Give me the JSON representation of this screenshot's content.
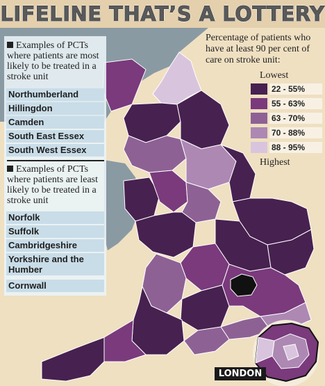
{
  "headline": "LIFELINE THAT’S A LOTTERY",
  "panel": {
    "most_likely": {
      "intro": "Examples of PCTs where patients are most likely to be treated in a stroke unit",
      "items": [
        "Northumberland",
        "Hillingdon",
        "Camden",
        "South East Essex",
        "South West Essex"
      ]
    },
    "least_likely": {
      "intro": "Examples of PCTs where patients are least likely to be treated in a stroke unit",
      "items": [
        "Norfolk",
        "Suffolk",
        "Cambridgeshire",
        "Yorkshire and the Humber",
        "Cornwall"
      ]
    }
  },
  "legend": {
    "title": "Percentage of patients who have at least 90 per cent of care on stroke unit:",
    "lowest": "Lowest",
    "highest": "Highest",
    "bins": [
      {
        "label": "22 - 55%",
        "color": "#472150"
      },
      {
        "label": "55 - 63%",
        "color": "#7a3a7c"
      },
      {
        "label": "63 - 70%",
        "color": "#8e6195"
      },
      {
        "label": "70 - 88%",
        "color": "#ad88b3"
      },
      {
        "label": "88 - 95%",
        "color": "#d9c4dd"
      }
    ]
  },
  "inset_label": "LONDON",
  "colors": {
    "sea": "#efe0c2",
    "land_other": "#8a9aa3",
    "london_outer": "#111111",
    "borders": "#ffffff"
  }
}
